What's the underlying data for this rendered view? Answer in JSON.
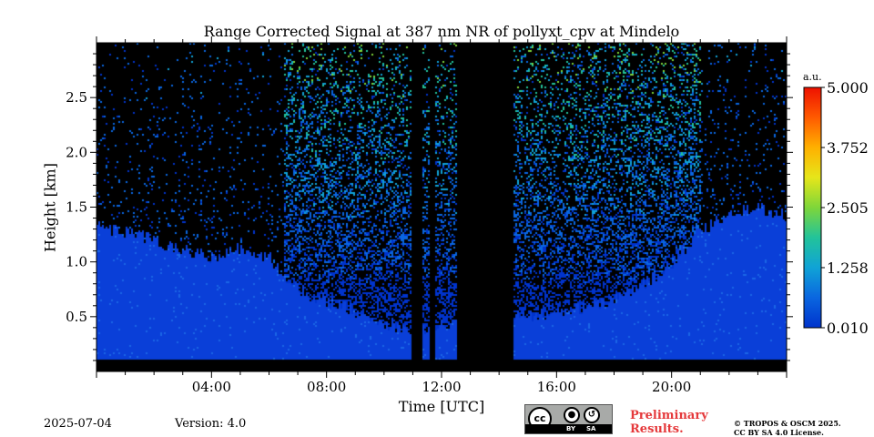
{
  "chart_data": {
    "type": "heatmap",
    "title": "Range Corrected Signal at 387 nm NR of pollyxt_cpv at Mindelo",
    "xlabel": "Time [UTC]",
    "ylabel": "Height [km]",
    "xlim_hours": [
      0,
      24
    ],
    "ylim_km": [
      0.0,
      3.0
    ],
    "x_ticks": [
      "04:00",
      "08:00",
      "12:00",
      "16:00",
      "20:00"
    ],
    "x_tick_hours": [
      4,
      8,
      12,
      16,
      20
    ],
    "y_ticks": [
      "0.5",
      "1.0",
      "1.5",
      "2.0",
      "2.5"
    ],
    "y_tick_values": [
      0.5,
      1.0,
      1.5,
      2.0,
      2.5
    ],
    "colorbar": {
      "unit": "a.u.",
      "range": [
        0.01,
        5.0
      ],
      "tick_labels": [
        "0.010",
        "1.258",
        "2.505",
        "3.752",
        "5.000"
      ],
      "tick_values": [
        0.01,
        1.258,
        2.505,
        3.752,
        5.0
      ],
      "colormap": [
        "#0033cc",
        "#0a66e0",
        "#10a3d6",
        "#22c39a",
        "#7ed63a",
        "#e6e61a",
        "#ffb000",
        "#ff5a00",
        "#ee1100"
      ]
    },
    "no_data_periods_hours": [
      [
        10.9,
        11.3
      ],
      [
        11.55,
        11.75
      ],
      [
        12.5,
        14.5
      ]
    ],
    "no_data_below_km": 0.11,
    "boundary_layer_top_km": [
      {
        "t": 0,
        "h": 1.32
      },
      {
        "t": 1,
        "h": 1.28
      },
      {
        "t": 2,
        "h": 1.2
      },
      {
        "t": 3,
        "h": 1.12
      },
      {
        "t": 4,
        "h": 1.05
      },
      {
        "t": 5,
        "h": 1.15
      },
      {
        "t": 6,
        "h": 1.05
      },
      {
        "t": 7,
        "h": 0.75
      },
      {
        "t": 8,
        "h": 0.65
      },
      {
        "t": 9,
        "h": 0.55
      },
      {
        "t": 10,
        "h": 0.45
      },
      {
        "t": 11,
        "h": 0.4
      },
      {
        "t": 14.5,
        "h": 0.5
      },
      {
        "t": 16,
        "h": 0.55
      },
      {
        "t": 17,
        "h": 0.6
      },
      {
        "t": 18,
        "h": 0.65
      },
      {
        "t": 19,
        "h": 0.8
      },
      {
        "t": 20,
        "h": 1.0
      },
      {
        "t": 21,
        "h": 1.3
      },
      {
        "t": 22,
        "h": 1.45
      },
      {
        "t": 23,
        "h": 1.5
      },
      {
        "t": 24,
        "h": 1.42
      }
    ]
  },
  "footer": {
    "date": "2025-07-04",
    "version": "Version: 4.0",
    "preliminary_line1": "Preliminary",
    "preliminary_line2": "Results.",
    "copyright_line1": "© TROPOS & OSCM 2025.",
    "copyright_line2": "CC BY SA 4.0 License.",
    "cc_logo": {
      "symbol": "cc",
      "by_label": "BY",
      "sa_label": "SA"
    }
  }
}
